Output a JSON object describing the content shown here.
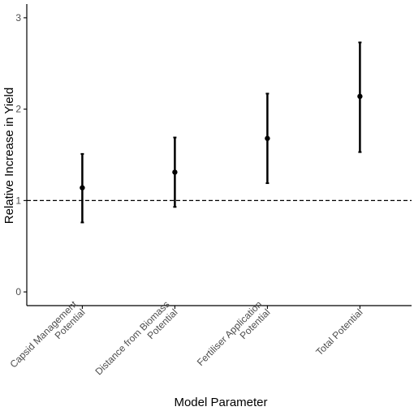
{
  "chart_data": {
    "type": "scatter",
    "title": "",
    "xlabel": "Model Parameter",
    "ylabel": "Relative Increase in Yield",
    "categories": [
      [
        "Capsid Management",
        "Potential"
      ],
      [
        "Distance from Biomass",
        "Potential"
      ],
      [
        "Fertiliser Application",
        "Potential"
      ],
      [
        "Total Potential"
      ]
    ],
    "values": [
      1.14,
      1.31,
      1.68,
      2.14
    ],
    "lower": [
      0.76,
      0.93,
      1.19,
      1.53
    ],
    "upper": [
      1.51,
      1.69,
      2.17,
      2.73
    ],
    "reference_line": 1,
    "ylim": [
      -0.15,
      3.15
    ],
    "yticks": [
      0,
      1,
      2,
      3
    ],
    "grid": false,
    "colors": {
      "points": "#000000",
      "reference_line": "#000000",
      "axis": "#000000"
    }
  }
}
